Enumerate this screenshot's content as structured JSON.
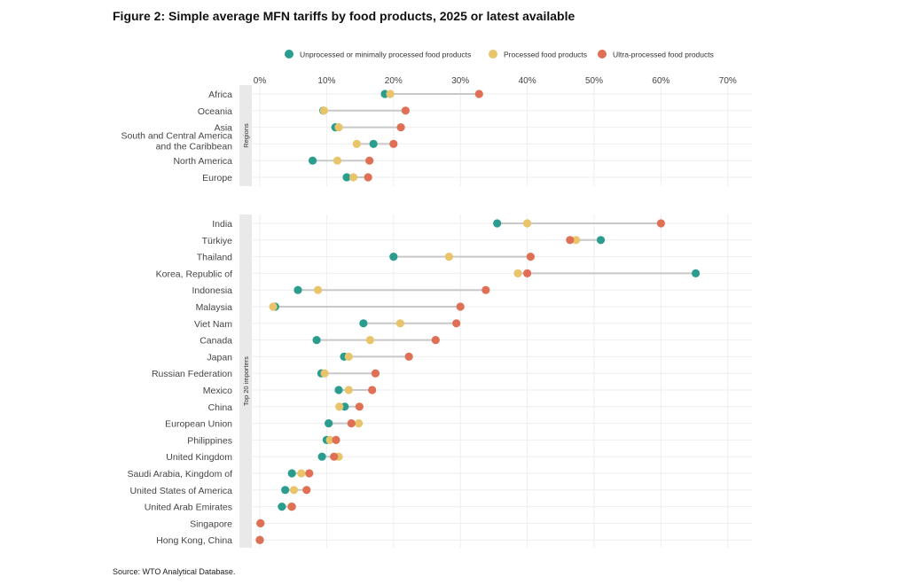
{
  "title": "Figure 2: Simple average MFN tariffs by food products, 2025 or latest available",
  "source": "Source: WTO Analytical Database.",
  "colors": {
    "unprocessed": "#2a9d8f",
    "processed": "#e9c46a",
    "ultra": "#e07055",
    "connector": "#c8c8c8",
    "grid": "#eeeeee",
    "facet_strip": "#e9e9e9"
  },
  "chart_data": {
    "type": "dumbbell",
    "title": "Figure 2: Simple average MFN tariffs by food products, 2025 or latest available",
    "xlabel": "",
    "ylabel": "",
    "xlim": [
      0,
      70
    ],
    "x_ticks": [
      0,
      10,
      20,
      30,
      40,
      50,
      60,
      70
    ],
    "x_tick_labels": [
      "0%",
      "10%",
      "20%",
      "30%",
      "40%",
      "50%",
      "60%",
      "70%"
    ],
    "grid": true,
    "legend_position": "top",
    "series": [
      {
        "name": "Unprocessed or minimally processed food products",
        "key": "unprocessed"
      },
      {
        "name": "Processed food products",
        "key": "processed"
      },
      {
        "name": "Ultra-processed food products",
        "key": "ultra"
      }
    ],
    "panels": [
      {
        "facet_label": "Regions",
        "rows": [
          {
            "label": "Africa",
            "unprocessed": 18.7,
            "processed": 19.5,
            "ultra": 32.8
          },
          {
            "label": "Oceania",
            "unprocessed": 9.5,
            "processed": 9.6,
            "ultra": 21.8
          },
          {
            "label": "Asia",
            "unprocessed": 11.3,
            "processed": 11.8,
            "ultra": 21.1
          },
          {
            "label": "South and Central America and the Caribbean",
            "label_lines": [
              "South and Central America",
              "and the Caribbean"
            ],
            "unprocessed": 17.0,
            "processed": 14.5,
            "ultra": 20.0
          },
          {
            "label": "North America",
            "unprocessed": 7.9,
            "processed": 11.6,
            "ultra": 16.4
          },
          {
            "label": "Europe",
            "unprocessed": 13.0,
            "processed": 14.0,
            "ultra": 16.2
          }
        ]
      },
      {
        "facet_label": "Top 20 importers",
        "rows": [
          {
            "label": "India",
            "unprocessed": 35.5,
            "processed": 40.0,
            "ultra": 60.0
          },
          {
            "label": "Türkiye",
            "unprocessed": 51.0,
            "processed": 47.3,
            "ultra": 46.4
          },
          {
            "label": "Thailand",
            "unprocessed": 20.0,
            "processed": 28.3,
            "ultra": 40.5
          },
          {
            "label": "Korea, Republic of",
            "unprocessed": 65.2,
            "processed": 38.6,
            "ultra": 40.0
          },
          {
            "label": "Indonesia",
            "unprocessed": 5.7,
            "processed": 8.7,
            "ultra": 33.8
          },
          {
            "label": "Malaysia",
            "unprocessed": 2.3,
            "processed": 2.0,
            "ultra": 30.0
          },
          {
            "label": "Viet Nam",
            "unprocessed": 15.5,
            "processed": 21.0,
            "ultra": 29.4
          },
          {
            "label": "Canada",
            "unprocessed": 8.5,
            "processed": 16.5,
            "ultra": 26.3
          },
          {
            "label": "Japan",
            "unprocessed": 12.6,
            "processed": 13.3,
            "ultra": 22.3
          },
          {
            "label": "Russian Federation",
            "unprocessed": 9.2,
            "processed": 9.7,
            "ultra": 17.3
          },
          {
            "label": "Mexico",
            "unprocessed": 11.8,
            "processed": 13.3,
            "ultra": 16.8
          },
          {
            "label": "China",
            "unprocessed": 12.7,
            "processed": 11.9,
            "ultra": 14.9
          },
          {
            "label": "European Union",
            "unprocessed": 10.3,
            "processed": 14.8,
            "ultra": 13.7
          },
          {
            "label": "Philippines",
            "unprocessed": 10.0,
            "processed": 10.5,
            "ultra": 11.4
          },
          {
            "label": "United Kingdom",
            "unprocessed": 9.3,
            "processed": 11.8,
            "ultra": 11.1
          },
          {
            "label": "Saudi Arabia, Kingdom of",
            "unprocessed": 4.8,
            "processed": 6.2,
            "ultra": 7.4
          },
          {
            "label": "United States of America",
            "unprocessed": 3.8,
            "processed": 5.1,
            "ultra": 7.0
          },
          {
            "label": "United Arab Emirates",
            "unprocessed": 3.3,
            "processed": 4.7,
            "ultra": 4.8
          },
          {
            "label": "Singapore",
            "unprocessed": 0.1,
            "processed": 0.1,
            "ultra": 0.1
          },
          {
            "label": "Hong Kong, China",
            "unprocessed": 0.0,
            "processed": 0.0,
            "ultra": 0.0
          }
        ]
      }
    ]
  }
}
